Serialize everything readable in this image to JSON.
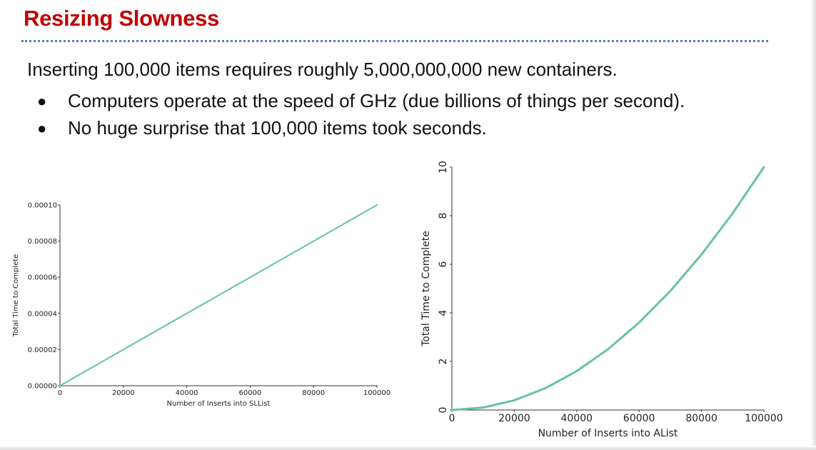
{
  "slide": {
    "title": "Resizing Slowness",
    "intro": "Inserting 100,000 items requires roughly 5,000,000,000 new containers.",
    "bullets": [
      "Computers operate at the speed of GHz (due billions of things per second).",
      "No huge surprise that 100,000 items took seconds."
    ],
    "bullet_glyph": "●",
    "colors": {
      "title": "#c00000",
      "divider": "#4f81bd",
      "series": "#66c2a5"
    }
  },
  "chart_data": [
    {
      "type": "line",
      "xlabel": "Number of Inserts into SLList",
      "ylabel": "Total Time to Complete",
      "xlim": [
        0,
        100000
      ],
      "ylim": [
        0,
        0.0001
      ],
      "xticks": [
        "0",
        "20000",
        "40000",
        "60000",
        "80000",
        "100000"
      ],
      "yticks": [
        "0.00000",
        "0.00002",
        "0.00004",
        "0.00006",
        "0.00008",
        "0.00010"
      ],
      "grid": false,
      "series": [
        {
          "x": [
            0,
            20000,
            40000,
            60000,
            80000,
            100000
          ],
          "values": [
            0,
            2e-05,
            4e-05,
            6e-05,
            8e-05,
            0.0001
          ]
        }
      ]
    },
    {
      "type": "line",
      "xlabel": "Number of Inserts into AList",
      "ylabel": "Total Time to Complete",
      "xlim": [
        0,
        100000
      ],
      "ylim": [
        0,
        10
      ],
      "xticks": [
        "0",
        "20000",
        "40000",
        "60000",
        "80000",
        "100000"
      ],
      "yticks": [
        "0",
        "2",
        "4",
        "6",
        "8",
        "10"
      ],
      "grid": false,
      "series": [
        {
          "x": [
            0,
            10000,
            20000,
            30000,
            40000,
            50000,
            60000,
            70000,
            80000,
            90000,
            100000
          ],
          "values": [
            0,
            0.1,
            0.4,
            0.9,
            1.6,
            2.5,
            3.6,
            4.9,
            6.4,
            8.1,
            10
          ]
        }
      ]
    }
  ]
}
